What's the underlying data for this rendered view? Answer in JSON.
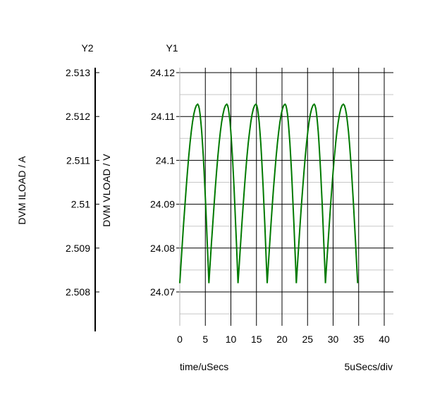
{
  "chart_data": {
    "type": "line",
    "y1_header": "Y1",
    "y2_header": "Y2",
    "y1_label": "DVM VLOAD / V",
    "y2_label": "DVM ILOAD / A",
    "x_title": "time/uSecs",
    "x_scale_note": "5uSecs/div",
    "x_ticks": [
      "0",
      "5",
      "10",
      "15",
      "20",
      "25",
      "30",
      "35",
      "40"
    ],
    "x_range": [
      0,
      40
    ],
    "y1_ticks": [
      "24.12",
      "24.11",
      "24.1",
      "24.09",
      "24.08",
      "24.07"
    ],
    "y1_range": [
      24.065,
      24.1215
    ],
    "y2_ticks": [
      "2.513",
      "2.512",
      "2.511",
      "2.51",
      "2.509",
      "2.508"
    ],
    "grid": true,
    "series": [
      {
        "color": "#007a00",
        "x": [
          0,
          3.5,
          5.7,
          9.2,
          11.4,
          14.9,
          17.1,
          20.6,
          22.8,
          26.3,
          28.5,
          32.0,
          34.8
        ],
        "y": [
          24.072,
          24.1128,
          24.072,
          24.1128,
          24.072,
          24.1128,
          24.072,
          24.1128,
          24.072,
          24.1128,
          24.072,
          24.1128,
          24.072
        ]
      }
    ]
  }
}
